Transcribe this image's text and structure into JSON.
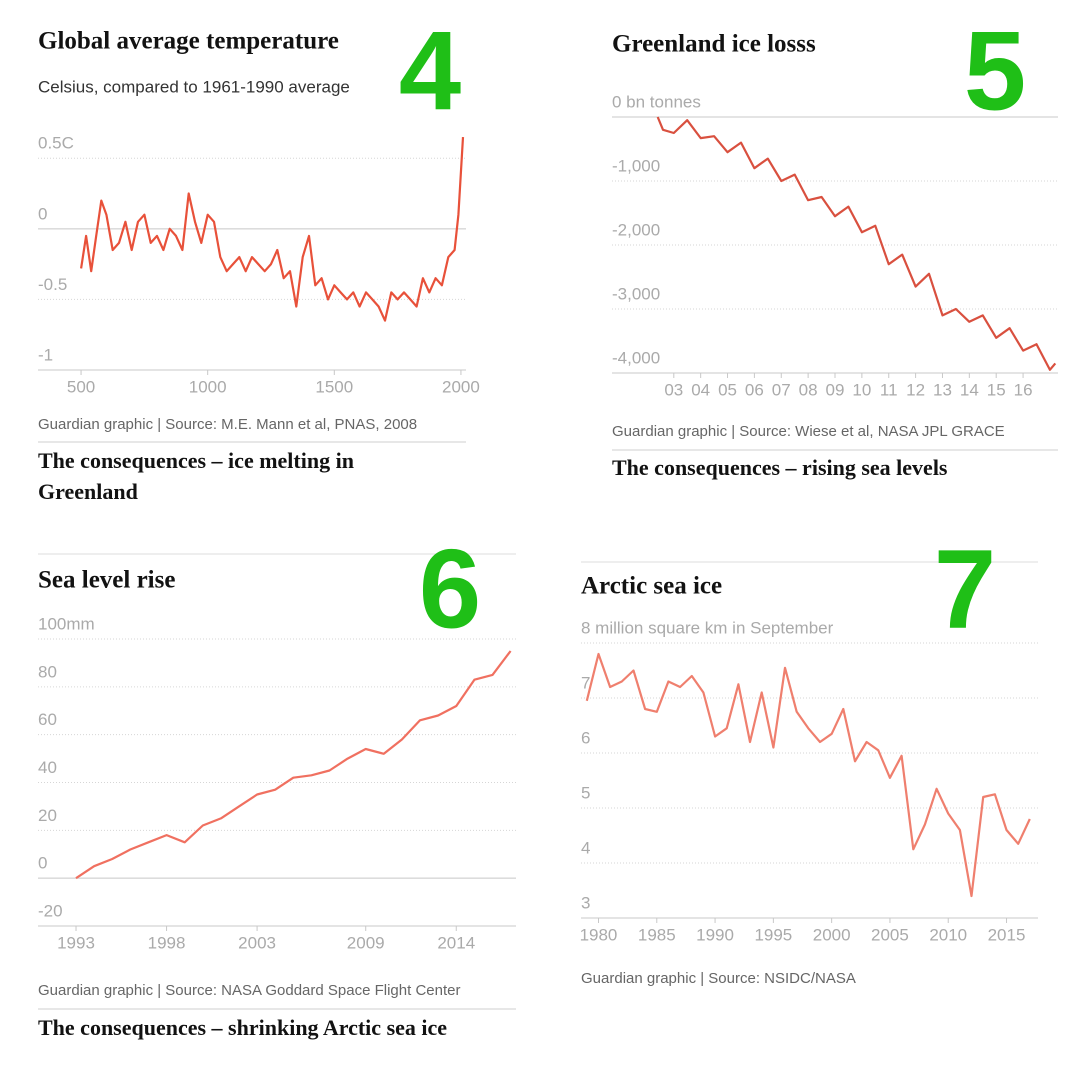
{
  "chart_data": [
    {
      "type": "line",
      "title": "Global average temperature",
      "number": "4",
      "subtitle": "Celsius, compared to 1961-1990 average",
      "x": [
        500,
        520,
        540,
        560,
        580,
        600,
        625,
        650,
        675,
        700,
        725,
        750,
        775,
        800,
        825,
        850,
        875,
        900,
        925,
        950,
        975,
        1000,
        1025,
        1050,
        1075,
        1100,
        1125,
        1150,
        1175,
        1200,
        1225,
        1250,
        1275,
        1300,
        1325,
        1350,
        1375,
        1400,
        1425,
        1450,
        1475,
        1500,
        1525,
        1550,
        1575,
        1600,
        1625,
        1650,
        1675,
        1700,
        1725,
        1750,
        1775,
        1800,
        1825,
        1850,
        1875,
        1900,
        1925,
        1950,
        1975,
        1990,
        2000,
        2008
      ],
      "values": [
        -0.28,
        -0.05,
        -0.3,
        -0.05,
        0.2,
        0.1,
        -0.15,
        -0.1,
        0.05,
        -0.15,
        0.05,
        0.1,
        -0.1,
        -0.05,
        -0.15,
        0,
        -0.05,
        -0.15,
        0.25,
        0.05,
        -0.1,
        0.1,
        0.05,
        -0.2,
        -0.3,
        -0.25,
        -0.2,
        -0.3,
        -0.2,
        -0.25,
        -0.3,
        -0.25,
        -0.15,
        -0.35,
        -0.3,
        -0.55,
        -0.2,
        -0.05,
        -0.4,
        -0.35,
        -0.5,
        -0.4,
        -0.45,
        -0.5,
        -0.45,
        -0.55,
        -0.45,
        -0.5,
        -0.55,
        -0.65,
        -0.45,
        -0.5,
        -0.45,
        -0.5,
        -0.55,
        -0.35,
        -0.45,
        -0.35,
        -0.4,
        -0.2,
        -0.15,
        0.1,
        0.4,
        0.65
      ],
      "color": "#e8513a",
      "xlim": [
        330,
        2020
      ],
      "ylim": [
        -1,
        0.7
      ],
      "xticks": [
        500,
        1000,
        1500,
        2000
      ],
      "yticks": [
        {
          "value": 0.5,
          "label": "0.5C"
        },
        0,
        -0.5,
        -1
      ],
      "source": "Guardian graphic | Source: M.E. Mann et al, PNAS, 2008",
      "footer": "The consequences – ice melting in Greenland"
    },
    {
      "type": "line",
      "title": "Greenland ice losss",
      "number": "5",
      "x": [
        2002.4,
        2002.6,
        2003,
        2003.5,
        2004,
        2004.5,
        2005,
        2005.5,
        2006,
        2006.5,
        2007,
        2007.5,
        2008,
        2008.5,
        2009,
        2009.5,
        2010,
        2010.5,
        2011,
        2011.5,
        2012,
        2012.5,
        2013,
        2013.5,
        2014,
        2014.5,
        2015,
        2015.5,
        2016,
        2016.5,
        2017,
        2017.2
      ],
      "values": [
        0,
        -200,
        -250,
        -50,
        -330,
        -300,
        -550,
        -400,
        -800,
        -650,
        -1000,
        -900,
        -1300,
        -1250,
        -1550,
        -1400,
        -1800,
        -1700,
        -2300,
        -2150,
        -2650,
        -2450,
        -3100,
        -3000,
        -3200,
        -3100,
        -3450,
        -3300,
        -3650,
        -3550,
        -3950,
        -3850
      ],
      "color": "#d9503f",
      "xlim": [
        2000.7,
        2017.3
      ],
      "ylim": [
        -4000,
        0
      ],
      "xticks": [
        {
          "value": 2003,
          "label": "03"
        },
        {
          "value": 2004,
          "label": "04"
        },
        {
          "value": 2005,
          "label": "05"
        },
        {
          "value": 2006,
          "label": "06"
        },
        {
          "value": 2007,
          "label": "07"
        },
        {
          "value": 2008,
          "label": "08"
        },
        {
          "value": 2009,
          "label": "09"
        },
        {
          "value": 2010,
          "label": "10"
        },
        {
          "value": 2011,
          "label": "11"
        },
        {
          "value": 2012,
          "label": "12"
        },
        {
          "value": 2013,
          "label": "13"
        },
        {
          "value": 2014,
          "label": "14"
        },
        {
          "value": 2015,
          "label": "15"
        },
        {
          "value": 2016,
          "label": "16"
        }
      ],
      "yticks": [
        {
          "value": 0,
          "label": "0 bn tonnes"
        },
        {
          "value": -1000,
          "label": "-1,000"
        },
        {
          "value": -2000,
          "label": "-2,000"
        },
        {
          "value": -3000,
          "label": "-3,000"
        },
        {
          "value": -4000,
          "label": "-4,000"
        }
      ],
      "source": "Guardian graphic | Source: Wiese et al, NASA JPL GRACE",
      "footer": "The consequences – rising sea levels"
    },
    {
      "type": "line",
      "title": "Sea level rise",
      "number": "6",
      "x": [
        1993,
        1994,
        1995,
        1996,
        1997,
        1998,
        1999,
        2000,
        2001,
        2002,
        2003,
        2004,
        2005,
        2006,
        2007,
        2008,
        2009,
        2010,
        2011,
        2012,
        2013,
        2014,
        2015,
        2016,
        2017
      ],
      "values": [
        0,
        5,
        8,
        12,
        15,
        18,
        15,
        22,
        25,
        30,
        35,
        37,
        42,
        43,
        45,
        50,
        54,
        52,
        58,
        66,
        68,
        72,
        83,
        85,
        95
      ],
      "color": "#f07060",
      "xlim": [
        1990.9,
        2017.3
      ],
      "ylim": [
        -20,
        100
      ],
      "xticks": [
        1993,
        1998,
        2003,
        2009,
        2014
      ],
      "yticks": [
        {
          "value": 100,
          "label": "100mm"
        },
        80,
        60,
        40,
        20,
        0,
        -20
      ],
      "source": "Guardian graphic | Source: NASA Goddard Space Flight Center",
      "footer": "The consequences – shrinking Arctic sea ice"
    },
    {
      "type": "line",
      "title": "Arctic sea ice",
      "number": "7",
      "x": [
        1979,
        1980,
        1981,
        1982,
        1983,
        1984,
        1985,
        1986,
        1987,
        1988,
        1989,
        1990,
        1991,
        1992,
        1993,
        1994,
        1995,
        1996,
        1997,
        1998,
        1999,
        2000,
        2001,
        2002,
        2003,
        2004,
        2005,
        2006,
        2007,
        2008,
        2009,
        2010,
        2011,
        2012,
        2013,
        2014,
        2015,
        2016,
        2017
      ],
      "values": [
        6.95,
        7.8,
        7.2,
        7.3,
        7.5,
        6.8,
        6.75,
        7.3,
        7.2,
        7.4,
        7.1,
        6.3,
        6.45,
        7.25,
        6.2,
        7.1,
        6.1,
        7.55,
        6.75,
        6.45,
        6.2,
        6.35,
        6.8,
        5.85,
        6.2,
        6.05,
        5.55,
        5.95,
        4.25,
        4.7,
        5.35,
        4.9,
        4.6,
        3.4,
        5.2,
        5.25,
        4.6,
        4.35,
        4.8
      ],
      "color": "#ef7f6e",
      "xlim": [
        1978.5,
        2017.7
      ],
      "ylim": [
        3,
        8
      ],
      "xticks": [
        1980,
        1985,
        1990,
        1995,
        2000,
        2005,
        2010,
        2015
      ],
      "yticks": [
        {
          "value": 8,
          "label": "8 million square km in September"
        },
        7,
        6,
        5,
        4,
        3
      ],
      "source": "Guardian graphic | Source: NSIDC/NASA"
    }
  ]
}
